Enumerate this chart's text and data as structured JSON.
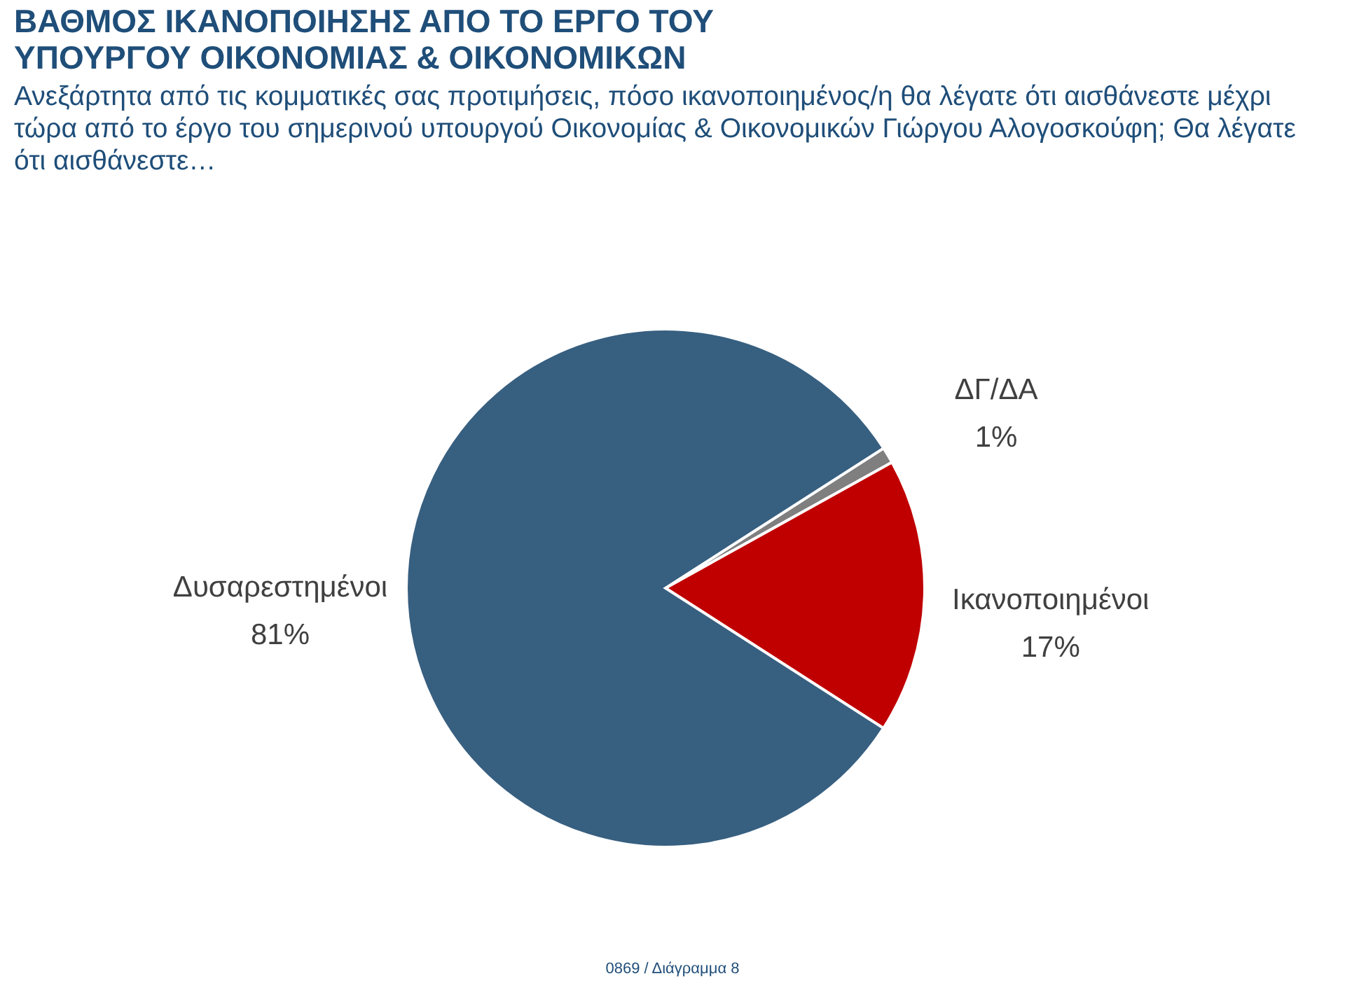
{
  "chart_data": {
    "type": "pie",
    "title": "ΒΑΘΜΟΣ ΙΚΑΝΟΠΟΙΗΣΗΣ ΑΠΟ ΤΟ ΕΡΓΟ ΤΟΥ ΥΠΟΥΡΓΟΥ ΟΙΚΟΝΟΜΙΑΣ & ΟΙΚΟΝΟΜΙΚΩΝ",
    "subtitle": "Ανεξάρτητα από τις κομματικές σας προτιμήσεις, πόσο ικανοποιημένος/η θα λέγατε ότι αισθάνεστε μέχρι τώρα από το έργο του σημερινού υπουργού Οικονομίας & Οικονομικών Γιώργου Αλογοσκούφη; Θα λέγατε ότι αισθάνεστε…",
    "categories": [
      "ΔΓ/ΔΑ",
      "Ικανοποιημένοι",
      "Δυσαρεστημένοι"
    ],
    "values": [
      1,
      17,
      81
    ],
    "colors": [
      "#7f7f7f",
      "#c00000",
      "#375f80"
    ],
    "value_labels": [
      "1%",
      "17%",
      "81%"
    ],
    "annotations": [
      "0869 / Διάγραμμα 8"
    ]
  }
}
